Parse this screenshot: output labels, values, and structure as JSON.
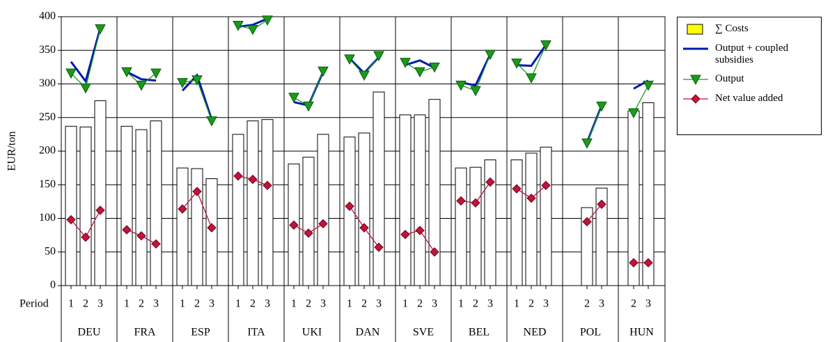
{
  "chart_data": {
    "type": "bar-line",
    "y_label": "EUR/ton",
    "period_label": "Period",
    "ylim": [
      0,
      400
    ],
    "yticks": [
      0,
      50,
      100,
      150,
      200,
      250,
      300,
      350,
      400
    ],
    "grid": true,
    "groups": [
      {
        "name": "DEU",
        "periods": [
          "1",
          "2",
          "3"
        ]
      },
      {
        "name": "FRA",
        "periods": [
          "1",
          "2",
          "3"
        ]
      },
      {
        "name": "ESP",
        "periods": [
          "1",
          "2",
          "3"
        ]
      },
      {
        "name": "ITA",
        "periods": [
          "1",
          "2",
          "3"
        ]
      },
      {
        "name": "UKI",
        "periods": [
          "1",
          "2",
          "3"
        ]
      },
      {
        "name": "DAN",
        "periods": [
          "1",
          "2",
          "3"
        ]
      },
      {
        "name": "SVE",
        "periods": [
          "1",
          "2",
          "3"
        ]
      },
      {
        "name": "BEL",
        "periods": [
          "1",
          "2",
          "3"
        ]
      },
      {
        "name": "NED",
        "periods": [
          "1",
          "2",
          "3"
        ]
      },
      {
        "name": "POL",
        "periods": [
          "2",
          "3"
        ]
      },
      {
        "name": "HUN",
        "periods": [
          "2",
          "3"
        ]
      }
    ],
    "series": [
      {
        "name": "∑ Costs",
        "kind": "bar",
        "color": "#ffff00",
        "values": [
          237,
          236,
          275,
          237,
          232,
          245,
          175,
          174,
          159,
          225,
          245,
          247,
          181,
          191,
          225,
          221,
          227,
          288,
          254,
          254,
          277,
          175,
          176,
          187,
          187,
          197,
          206,
          116,
          145,
          260,
          272
        ]
      },
      {
        "name": "Output + coupled subsidies",
        "kind": "line",
        "color": "#0018b0",
        "values": [
          333,
          304,
          383,
          318,
          307,
          305,
          290,
          313,
          247,
          385,
          388,
          397,
          273,
          268,
          318,
          338,
          316,
          340,
          328,
          335,
          324,
          302,
          298,
          344,
          328,
          327,
          358,
          213,
          268,
          293,
          305
        ]
      },
      {
        "name": "Output",
        "kind": "line",
        "marker": "triangle",
        "color": "#1a9a1a",
        "values": [
          316,
          294,
          382,
          318,
          298,
          316,
          302,
          306,
          245,
          387,
          381,
          395,
          280,
          267,
          319,
          337,
          313,
          342,
          332,
          318,
          325,
          298,
          290,
          344,
          331,
          309,
          358,
          212,
          267,
          257,
          298
        ]
      },
      {
        "name": "Net value added",
        "kind": "line",
        "marker": "diamond",
        "color": "#c0143c",
        "values": [
          98,
          72,
          112,
          83,
          74,
          62,
          114,
          140,
          86,
          163,
          158,
          149,
          90,
          78,
          92,
          118,
          86,
          57,
          76,
          82,
          50,
          126,
          123,
          154,
          144,
          130,
          149,
          95,
          121,
          34,
          34
        ]
      }
    ]
  }
}
